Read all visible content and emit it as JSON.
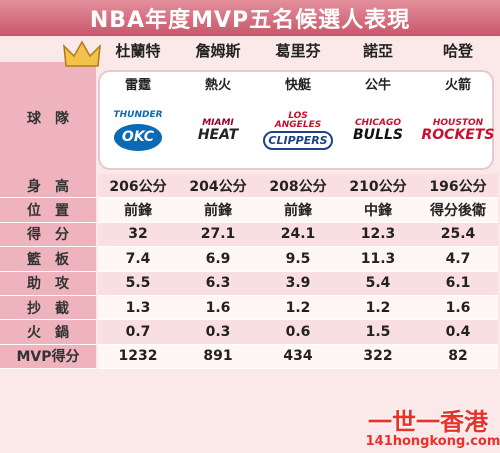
{
  "header": {
    "title": "NBA年度MVP五名候選人表現"
  },
  "players": [
    "杜蘭特",
    "詹姆斯",
    "葛里芬",
    "諾亞",
    "哈登"
  ],
  "team_label": "球　隊",
  "teams": [
    "雷霆",
    "熱火",
    "快艇",
    "公牛",
    "火箭"
  ],
  "logos": [
    [
      "THUNDER",
      "OKC"
    ],
    [
      "MIAMI",
      "HEAT"
    ],
    [
      "LOS ANGELES",
      "CLIPPERS"
    ],
    [
      "CHICAGO",
      "BULLS"
    ],
    [
      "HOUSTON",
      "ROCKETS"
    ]
  ],
  "table": {
    "rows": [
      [
        "身　高",
        "206公分",
        "204公分",
        "208公分",
        "210公分",
        "196公分"
      ],
      [
        "位　置",
        "前鋒",
        "前鋒",
        "前鋒",
        "中鋒",
        "得分後衛"
      ],
      [
        "得　分",
        "32",
        "27.1",
        "24.1",
        "12.3",
        "25.4"
      ],
      [
        "籃　板",
        "7.4",
        "6.9",
        "9.5",
        "11.3",
        "4.7"
      ],
      [
        "助　攻",
        "5.5",
        "6.3",
        "3.9",
        "5.4",
        "6.1"
      ],
      [
        "抄　截",
        "1.3",
        "1.6",
        "1.2",
        "1.2",
        "1.6"
      ],
      [
        "火　鍋",
        "0.7",
        "0.3",
        "0.6",
        "1.5",
        "0.4"
      ],
      [
        "MVP得分",
        "1232",
        "891",
        "434",
        "322",
        "82"
      ]
    ]
  },
  "watermark": {
    "brand": "一世一香港",
    "url": "141hongkong.com"
  }
}
